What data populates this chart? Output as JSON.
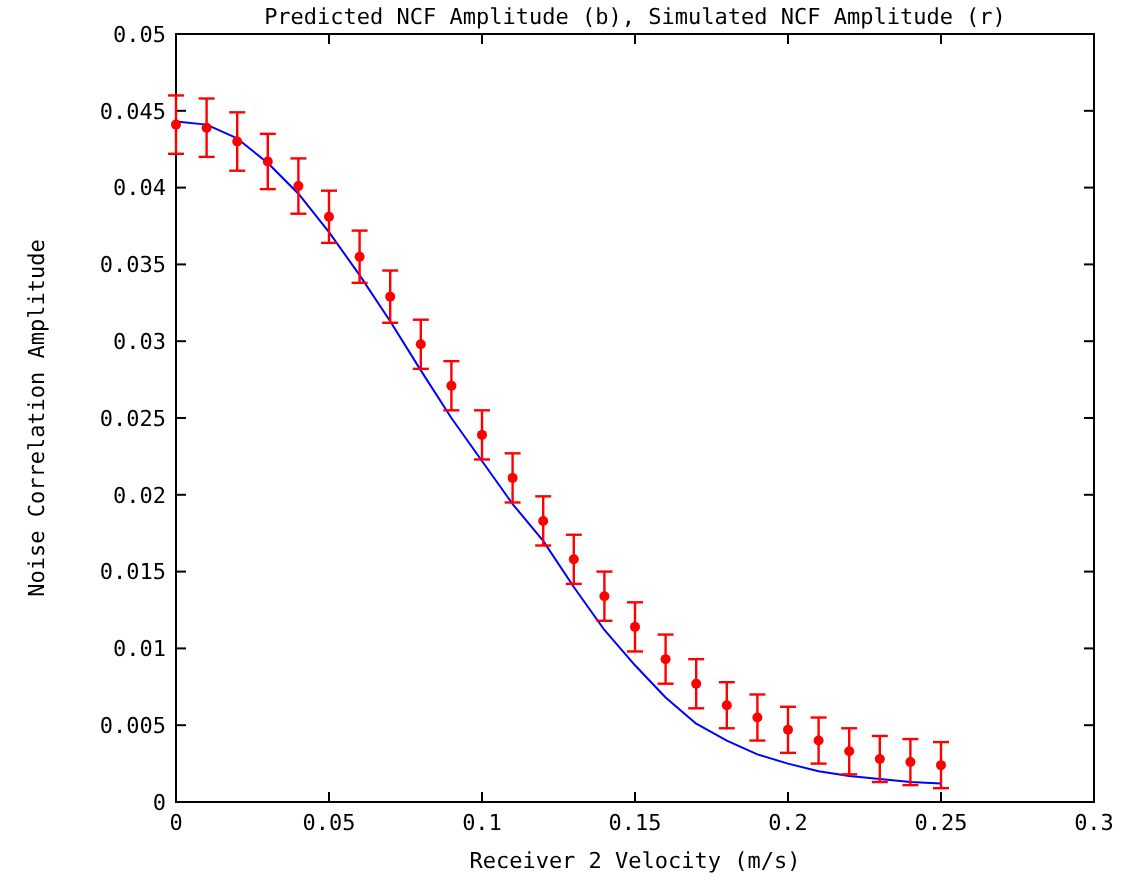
{
  "chart_data": {
    "type": "line",
    "title": "Predicted NCF Amplitude (b), Simulated NCF Amplitude (r)",
    "xlabel": "Receiver 2 Velocity (m/s)",
    "ylabel": "Noise Correlation Amplitude",
    "x": [
      0,
      0.01,
      0.02,
      0.03,
      0.04,
      0.05,
      0.06,
      0.07,
      0.08,
      0.09,
      0.1,
      0.11,
      0.12,
      0.13,
      0.14,
      0.15,
      0.16,
      0.17,
      0.18,
      0.19,
      0.2,
      0.21,
      0.22,
      0.23,
      0.24,
      0.25
    ],
    "xlim": [
      0,
      0.3
    ],
    "xticks": [
      0,
      0.05,
      0.1,
      0.15,
      0.2,
      0.25,
      0.3
    ],
    "ylim": [
      0,
      0.05
    ],
    "yticks": [
      0,
      0.005,
      0.01,
      0.015,
      0.02,
      0.025,
      0.03,
      0.035,
      0.04,
      0.045,
      0.05
    ],
    "grid": false,
    "series": [
      {
        "color": "#0000ff",
        "marker": "none",
        "line_style": "solid",
        "values": [
          0.0443,
          0.0441,
          0.0432,
          0.0416,
          0.0396,
          0.0371,
          0.0343,
          0.0313,
          0.0281,
          0.025,
          0.0222,
          0.0194,
          0.017,
          0.014,
          0.0112,
          0.0089,
          0.0068,
          0.0051,
          0.004,
          0.0031,
          0.0025,
          0.002,
          0.0017,
          0.0015,
          0.0013,
          0.0012
        ]
      },
      {
        "type": "scatter",
        "color": "#ff0000",
        "marker": "circle",
        "values": [
          0.0441,
          0.0439,
          0.043,
          0.0417,
          0.0401,
          0.0381,
          0.0355,
          0.0329,
          0.0298,
          0.0271,
          0.0239,
          0.0211,
          0.0183,
          0.0158,
          0.0134,
          0.0114,
          0.0093,
          0.0077,
          0.0063,
          0.0055,
          0.0047,
          0.004,
          0.0033,
          0.0028,
          0.0026,
          0.0024
        ],
        "errors": [
          0.0019,
          0.0019,
          0.0019,
          0.0018,
          0.0018,
          0.0017,
          0.0017,
          0.0017,
          0.0016,
          0.0016,
          0.0016,
          0.0016,
          0.0016,
          0.0016,
          0.0016,
          0.0016,
          0.0016,
          0.0016,
          0.0015,
          0.0015,
          0.0015,
          0.0015,
          0.0015,
          0.0015,
          0.0015,
          0.0015
        ]
      }
    ]
  }
}
